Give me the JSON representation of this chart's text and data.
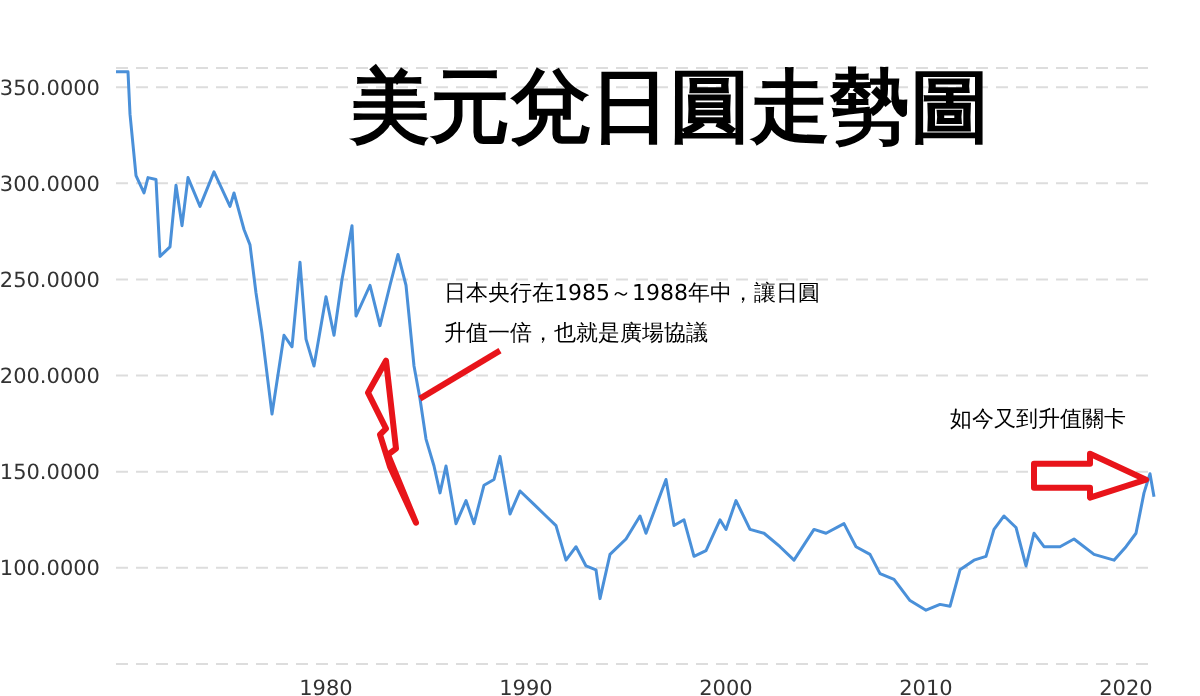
{
  "chart_data": {
    "type": "line",
    "title": "美元兌日圓走勢圖",
    "x": [
      1969.5,
      1970.1,
      1970.2,
      1970.5,
      1970.9,
      1971.1,
      1971.5,
      1971.7,
      1972.2,
      1972.5,
      1972.8,
      1973.1,
      1973.7,
      1974.4,
      1975.2,
      1975.4,
      1975.9,
      1976.2,
      1976.5,
      1976.8,
      1977.3,
      1977.9,
      1978.3,
      1978.6,
      1978.7,
      1979.0,
      1979.4,
      1980.0,
      1980.4,
      1980.8,
      1981.3,
      1981.5,
      1982.2,
      1982.7,
      1983.2,
      1983.6,
      1984.0,
      1984.4,
      1984.7,
      1985.0,
      1985.4,
      1985.7,
      1986.0,
      1986.5,
      1987.0,
      1987.4,
      1987.9,
      1988.4,
      1988.7,
      1989.2,
      1989.7,
      1990.4,
      1991.0,
      1991.5,
      1992.0,
      1992.5,
      1993.0,
      1993.5,
      1993.7,
      1994.2,
      1995.0,
      1995.7,
      1996.0,
      1996.5,
      1997.0,
      1997.4,
      1997.9,
      1998.4,
      1999.0,
      1999.7,
      2000.0,
      2000.5,
      2001.2,
      2001.9,
      2002.7,
      2003.4,
      2004.4,
      2005.0,
      2005.9,
      2006.5,
      2007.2,
      2007.7,
      2008.4,
      2009.2,
      2010.0,
      2010.7,
      2011.2,
      2011.7,
      2012.4,
      2013.0,
      2013.4,
      2013.9,
      2014.5,
      2015.0,
      2015.4,
      2015.9,
      2016.7,
      2017.4,
      2018.4,
      2019.4,
      2020.0,
      2020.5,
      2020.9,
      2021.2,
      2021.4
    ],
    "series": [
      {
        "color": "#4a90d9",
        "values": [
          358,
          358,
          336,
          304,
          295,
          303,
          302,
          262,
          267,
          299,
          278,
          303,
          288,
          306,
          288,
          295,
          276,
          268,
          243,
          222,
          180,
          221,
          215,
          248,
          259,
          219,
          205,
          241,
          221,
          250,
          278,
          231,
          247,
          226,
          247,
          263,
          247,
          205,
          188,
          167,
          153,
          139,
          153,
          123,
          135,
          123,
          143,
          146,
          158,
          128,
          140,
          133,
          127,
          122,
          104,
          111,
          101,
          99,
          84,
          107,
          115,
          127,
          118,
          132,
          146,
          122,
          125,
          106,
          109,
          125,
          120,
          135,
          120,
          118,
          111,
          104,
          120,
          118,
          123,
          111,
          107,
          97,
          94,
          83,
          78,
          81,
          80,
          99,
          104,
          106,
          120,
          127,
          121,
          101,
          118,
          111,
          111,
          115,
          107,
          104,
          111,
          118,
          139,
          149,
          137
        ]
      }
    ],
    "xlim": [
      1969.5,
      2021.5
    ],
    "xticks": [
      1980,
      1990,
      2000,
      2010,
      2020
    ],
    "ylim": [
      50,
      360
    ],
    "yticks": [
      {
        "value": 50,
        "label": null
      },
      {
        "value": 100,
        "label": "100.0000"
      },
      {
        "value": 150,
        "label": "150.0000"
      },
      {
        "value": 200,
        "label": "200.0000"
      },
      {
        "value": 250,
        "label": "250.0000"
      },
      {
        "value": 300,
        "label": "300.0000"
      },
      {
        "value": 350,
        "label": "350.0000"
      }
    ],
    "grid": "y",
    "legend": false,
    "marker": "none",
    "line_style": "solid",
    "annotations": [
      {
        "text": "日本央行在1985～1988年中，讓日圓升值一倍，也就是廣場協議",
        "x": 1984.7,
        "y": 188
      },
      {
        "text": "如今又到升值關卡",
        "x": 2021.2,
        "y": 149
      }
    ]
  }
}
